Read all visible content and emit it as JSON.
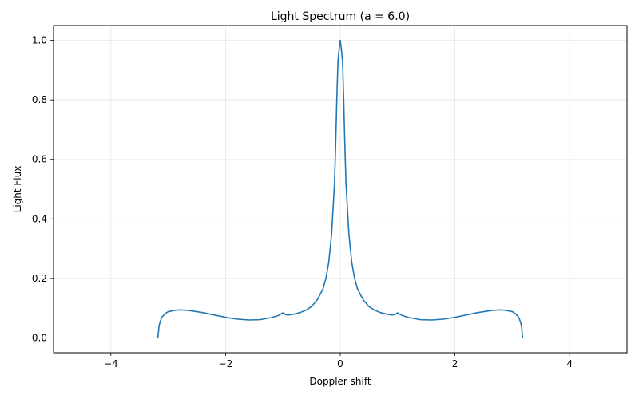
{
  "chart_data": {
    "type": "line",
    "title": "Light Spectrum (a = 6.0)",
    "xlabel": "Doppler shift",
    "ylabel": "Light Flux",
    "xlim": [
      -5,
      5
    ],
    "ylim": [
      -0.05,
      1.05
    ],
    "xticks": [
      -4,
      -2,
      0,
      2,
      4
    ],
    "xtick_labels": [
      "−4",
      "−2",
      "0",
      "2",
      "4"
    ],
    "yticks": [
      0.0,
      0.2,
      0.4,
      0.6,
      0.8,
      1.0
    ],
    "ytick_labels": [
      "0.0",
      "0.2",
      "0.4",
      "0.6",
      "0.8",
      "1.0"
    ],
    "grid": true,
    "legend": "none",
    "series": [
      {
        "color": "#1f77b4",
        "x": [
          -3.18,
          -3.16,
          -3.14,
          -3.12,
          -3.1,
          -3.05,
          -3.0,
          -2.9,
          -2.8,
          -2.7,
          -2.6,
          -2.4,
          -2.2,
          -2.0,
          -1.8,
          -1.6,
          -1.4,
          -1.2,
          -1.08,
          -1.0,
          -0.95,
          -0.9,
          -0.8,
          -0.7,
          -0.6,
          -0.5,
          -0.4,
          -0.3,
          -0.25,
          -0.2,
          -0.15,
          -0.1,
          -0.08,
          -0.06,
          -0.04,
          -0.02,
          0.0,
          0.02,
          0.04,
          0.06,
          0.08,
          0.1,
          0.15,
          0.2,
          0.25,
          0.3,
          0.4,
          0.5,
          0.6,
          0.7,
          0.8,
          0.9,
          0.95,
          1.0,
          1.08,
          1.2,
          1.4,
          1.6,
          1.8,
          2.0,
          2.2,
          2.4,
          2.6,
          2.7,
          2.8,
          2.9,
          3.0,
          3.05,
          3.1,
          3.12,
          3.14,
          3.16,
          3.18
        ],
        "y": [
          0.0,
          0.04,
          0.055,
          0.065,
          0.072,
          0.082,
          0.088,
          0.092,
          0.094,
          0.093,
          0.091,
          0.085,
          0.077,
          0.069,
          0.063,
          0.06,
          0.061,
          0.068,
          0.075,
          0.084,
          0.078,
          0.077,
          0.08,
          0.085,
          0.093,
          0.105,
          0.128,
          0.165,
          0.2,
          0.255,
          0.35,
          0.52,
          0.65,
          0.8,
          0.93,
          0.97,
          1.0,
          0.97,
          0.93,
          0.8,
          0.65,
          0.52,
          0.35,
          0.255,
          0.2,
          0.165,
          0.128,
          0.105,
          0.093,
          0.085,
          0.08,
          0.077,
          0.078,
          0.084,
          0.075,
          0.068,
          0.061,
          0.06,
          0.063,
          0.069,
          0.077,
          0.085,
          0.091,
          0.093,
          0.094,
          0.092,
          0.088,
          0.082,
          0.072,
          0.065,
          0.055,
          0.04,
          0.0
        ]
      }
    ]
  }
}
